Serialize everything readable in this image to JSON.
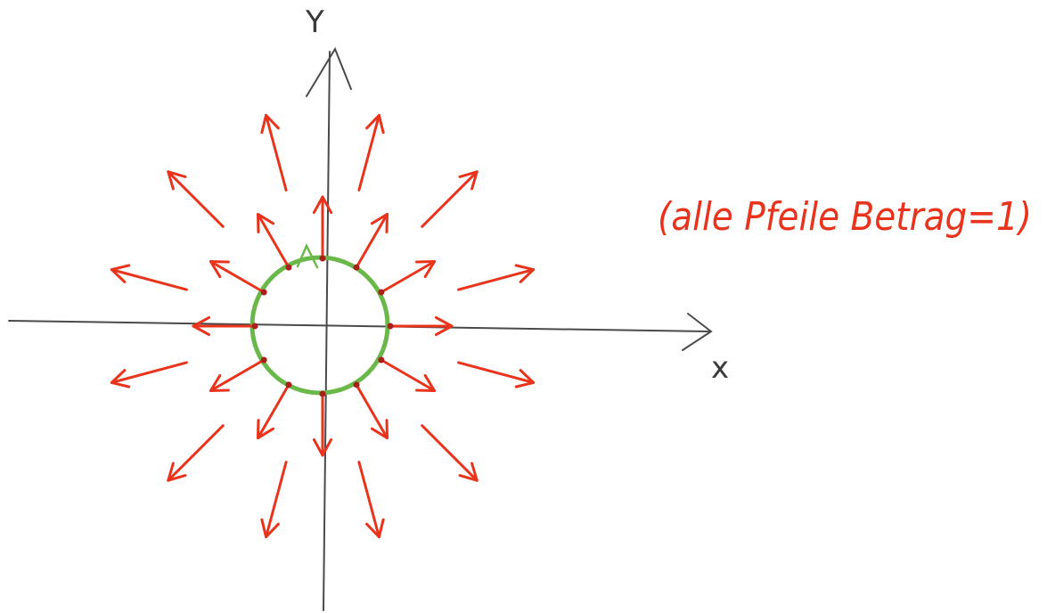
{
  "axes": {
    "x_label": "x",
    "y_label": "Y"
  },
  "annotation": "(alle Pfeile Betrag=1)",
  "colors": {
    "axis": "#4a4a4a",
    "arrow": "#e8341c",
    "arrow_dark": "#a8201a",
    "circle": "#6bb84a",
    "text": "#e8341c"
  }
}
